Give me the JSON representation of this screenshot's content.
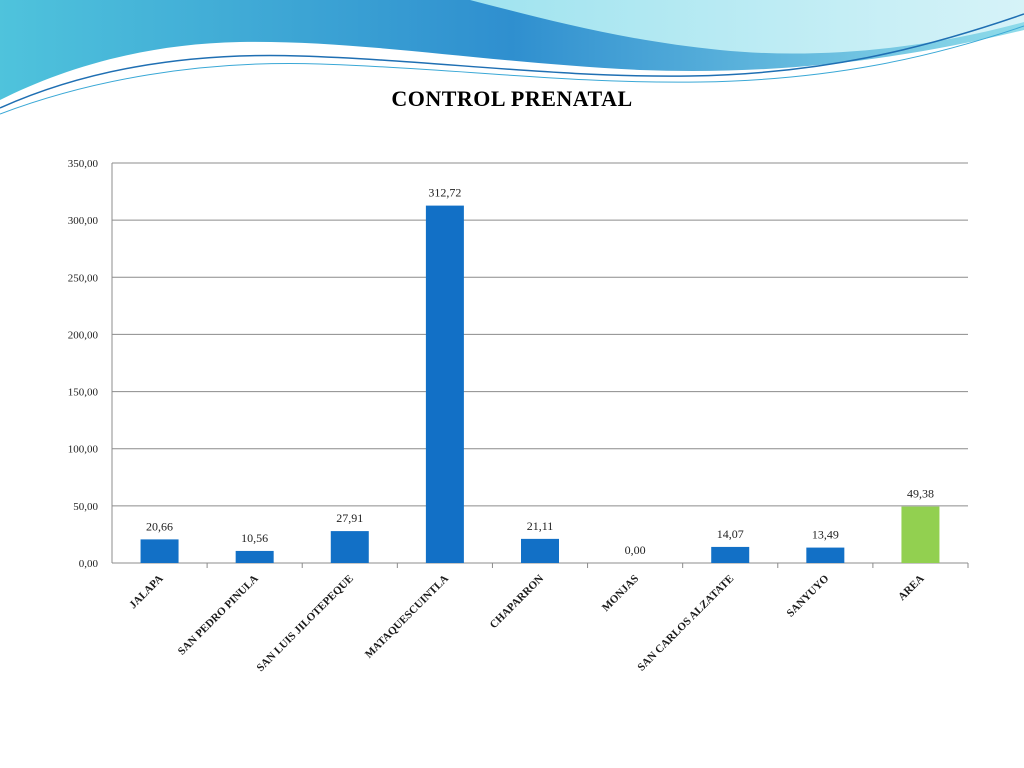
{
  "colors": {
    "bar": "#1270c6",
    "highlight_bar": "#92d050",
    "grid": "#8c8c8c",
    "wave_dark": "#2a86c9",
    "wave_light": "#7fd3e6"
  },
  "chart_data": {
    "type": "bar",
    "title": "CONTROL PRENATAL",
    "categories": [
      "JALAPA",
      "SAN PEDRO PINULA",
      "SAN LUIS JILOTEPEQUE",
      "MATAQUESCUINTLA",
      "CHAPARRON",
      "MONJAS",
      "SAN CARLOS ALZATATE",
      "SANYUYO",
      "AREA"
    ],
    "values": [
      20.66,
      10.56,
      27.91,
      312.72,
      21.11,
      0.0,
      14.07,
      13.49,
      49.38
    ],
    "data_labels": [
      "20,66",
      "10,56",
      "27,91",
      "312,72",
      "21,11",
      "0,00",
      "14,07",
      "13,49",
      "49,38"
    ],
    "highlight_index": 8,
    "y_ticks": [
      "0,00",
      "50,00",
      "100,00",
      "150,00",
      "200,00",
      "250,00",
      "300,00",
      "350,00"
    ],
    "y_tick_values": [
      0,
      50,
      100,
      150,
      200,
      250,
      300,
      350
    ],
    "ylim": [
      0,
      350
    ],
    "grid": true,
    "legend": false
  }
}
